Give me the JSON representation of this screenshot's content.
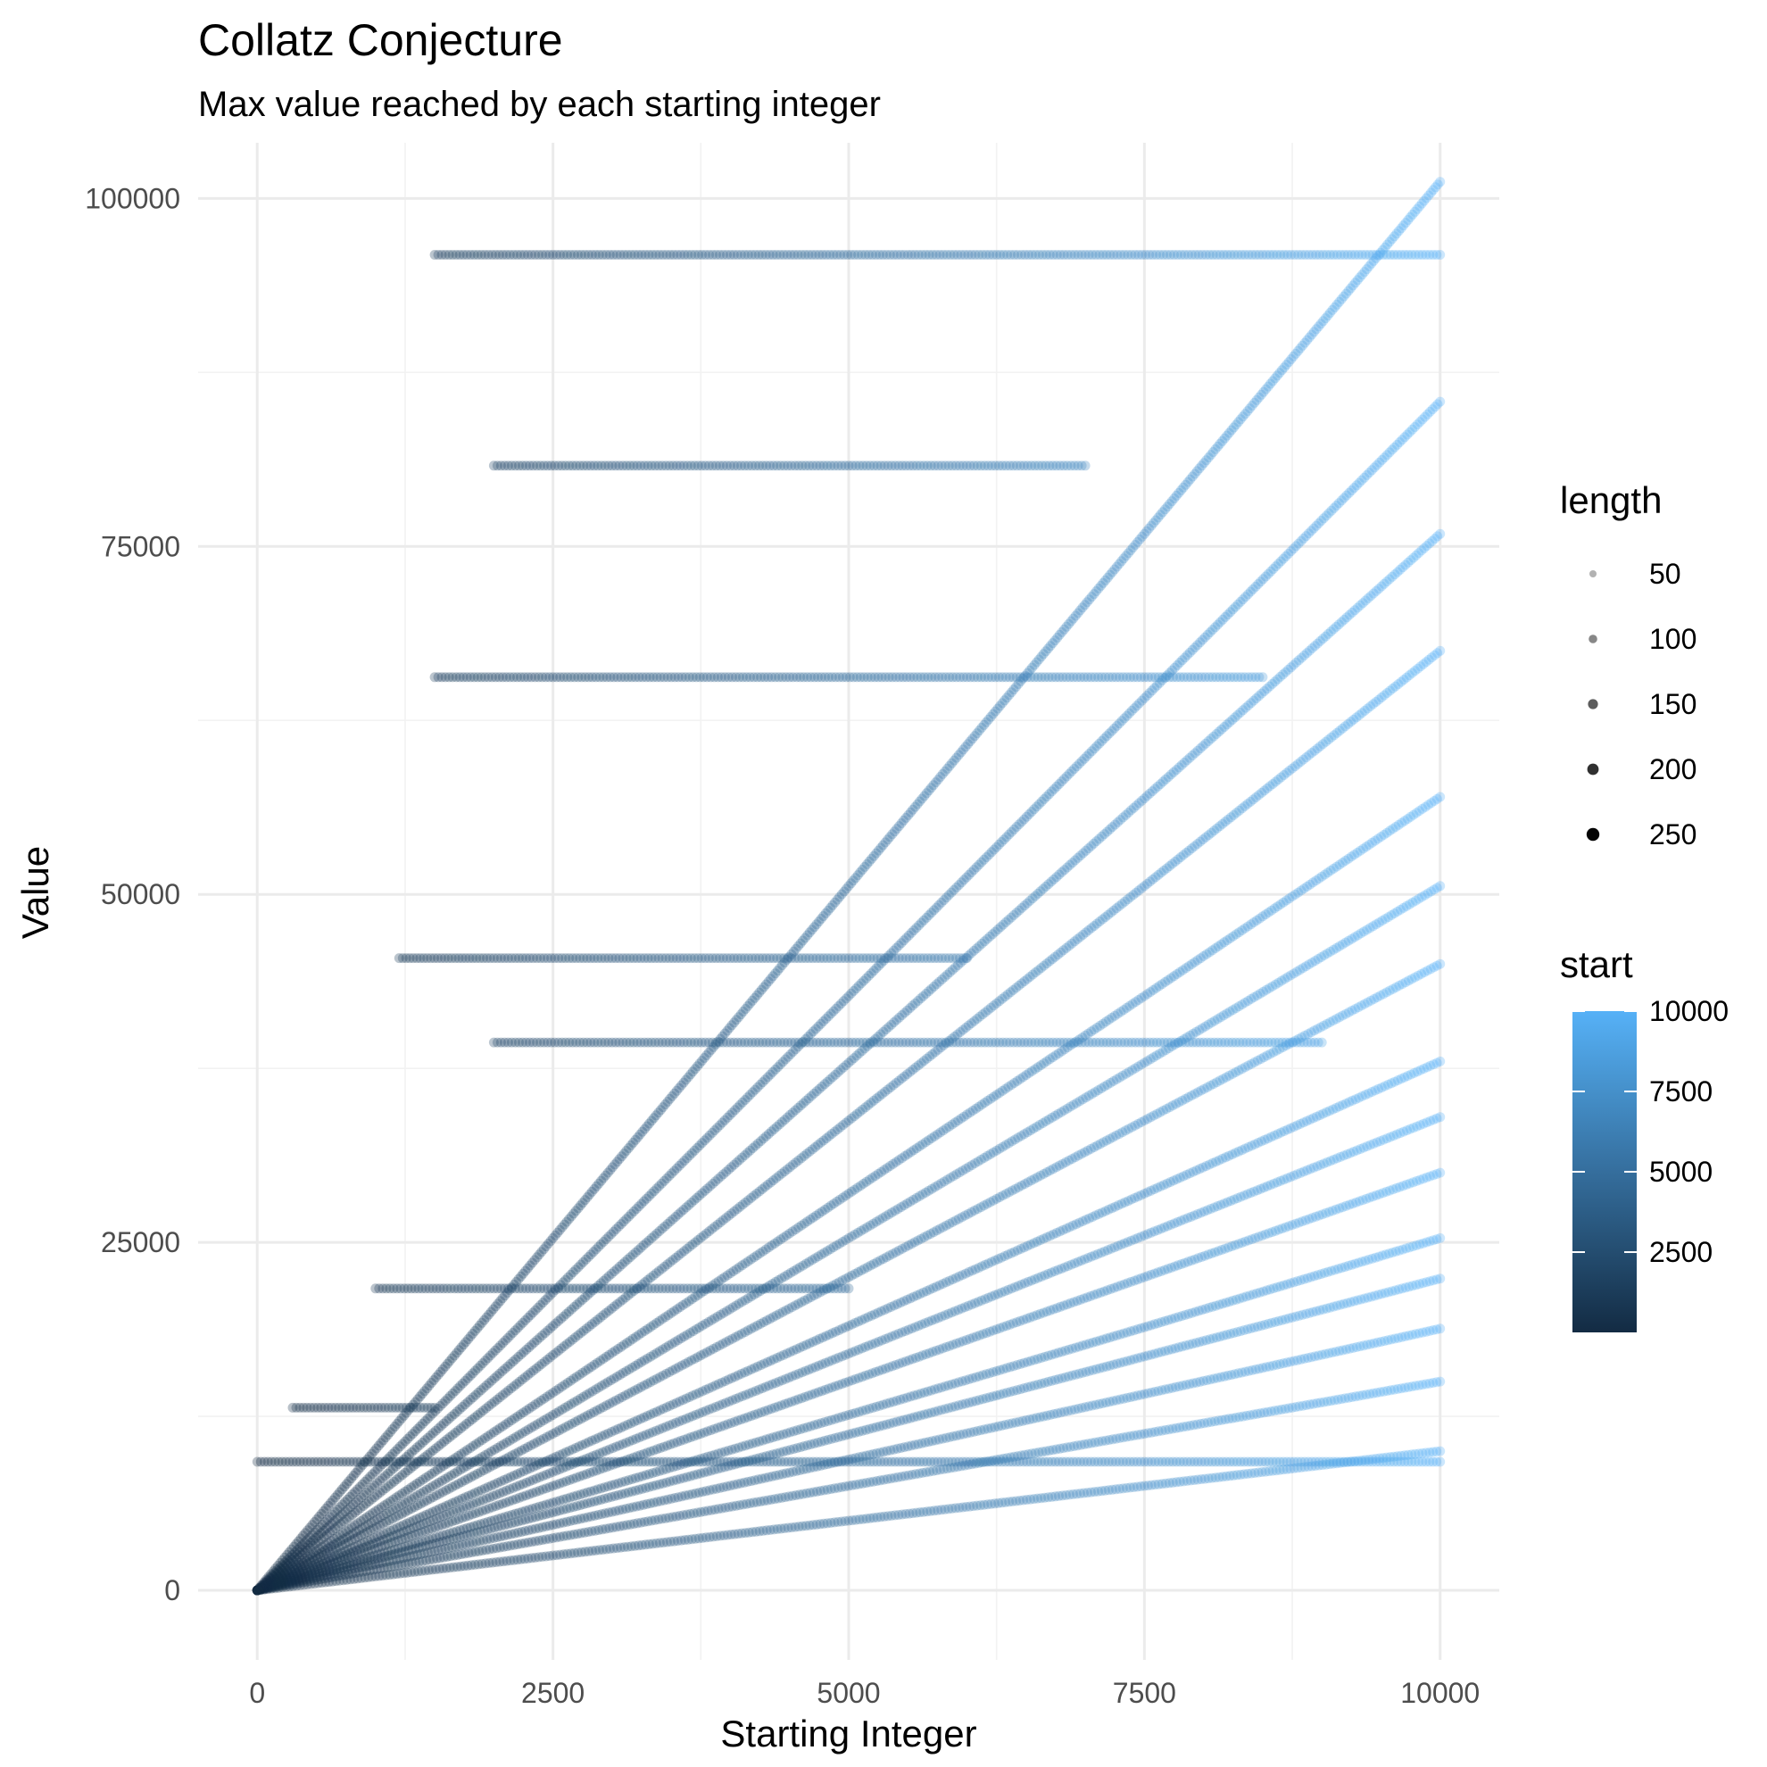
{
  "chart_data": {
    "type": "scatter",
    "title": "Collatz Conjecture",
    "subtitle": "Max value reached by each starting integer",
    "xlabel": "Starting Integer",
    "ylabel": "Value",
    "xlim": [
      -500,
      10500
    ],
    "ylim": [
      -5000,
      104000
    ],
    "x_ticks": [
      0,
      2500,
      5000,
      7500,
      10000
    ],
    "y_ticks": [
      0,
      25000,
      50000,
      75000,
      100000
    ],
    "x_tick_labels": [
      "0",
      "2500",
      "5000",
      "7500",
      "10000"
    ],
    "y_tick_labels": [
      "0",
      "25000",
      "50000",
      "75000",
      "100000"
    ],
    "grid": true,
    "legend_position": "right",
    "legends": {
      "size": {
        "title": "length",
        "breaks": [
          50,
          100,
          150,
          200,
          250
        ],
        "labels": [
          "50",
          "100",
          "150",
          "200",
          "250"
        ]
      },
      "color": {
        "title": "start",
        "range": [
          1,
          10000
        ],
        "breaks": [
          2500,
          5000,
          7500,
          10000
        ],
        "labels": [
          "2500",
          "5000",
          "7500",
          "10000"
        ],
        "low_color": "#132B43",
        "high_color": "#56B1F7"
      }
    },
    "color_mapping": "start",
    "point_alpha": 0.3,
    "series": [
      {
        "points": [
          [
            0,
            0
          ],
          [
            1000,
            1000
          ],
          [
            2500,
            2500
          ],
          [
            5000,
            5000
          ],
          [
            7500,
            7500
          ],
          [
            10000,
            10000
          ]
        ]
      },
      {
        "points": [
          [
            0,
            9232
          ],
          [
            2500,
            9232
          ],
          [
            5000,
            9232
          ],
          [
            7500,
            9232
          ],
          [
            10000,
            9232
          ]
        ]
      },
      {
        "points": [
          [
            0,
            0
          ],
          [
            2500,
            3750
          ],
          [
            5000,
            7500
          ],
          [
            7500,
            11250
          ],
          [
            10000,
            15000
          ]
        ]
      },
      {
        "points": [
          [
            0,
            0
          ],
          [
            2500,
            4700
          ],
          [
            5000,
            9400
          ],
          [
            7500,
            14100
          ],
          [
            10000,
            18800
          ]
        ]
      },
      {
        "points": [
          [
            0,
            0
          ],
          [
            2500,
            5600
          ],
          [
            5000,
            11200
          ],
          [
            7500,
            16800
          ],
          [
            10000,
            22400
          ]
        ]
      },
      {
        "points": [
          [
            0,
            0
          ],
          [
            2500,
            6300
          ],
          [
            5000,
            12600
          ],
          [
            7500,
            18900
          ],
          [
            10000,
            25300
          ]
        ]
      },
      {
        "points": [
          [
            0,
            0
          ],
          [
            2500,
            7500
          ],
          [
            5000,
            15000
          ],
          [
            7500,
            22500
          ],
          [
            10000,
            30000
          ]
        ]
      },
      {
        "points": [
          [
            0,
            0
          ],
          [
            2500,
            8500
          ],
          [
            5000,
            17000
          ],
          [
            7500,
            25500
          ],
          [
            10000,
            34000
          ]
        ]
      },
      {
        "points": [
          [
            0,
            0
          ],
          [
            2500,
            9500
          ],
          [
            5000,
            19000
          ],
          [
            7500,
            28500
          ],
          [
            10000,
            38000
          ]
        ]
      },
      {
        "points": [
          [
            0,
            0
          ],
          [
            2500,
            11250
          ],
          [
            5000,
            22500
          ],
          [
            7500,
            33750
          ],
          [
            10000,
            45000
          ]
        ]
      },
      {
        "points": [
          [
            0,
            0
          ],
          [
            2500,
            12600
          ],
          [
            5000,
            25300
          ],
          [
            7500,
            37900
          ],
          [
            10000,
            50600
          ]
        ]
      },
      {
        "points": [
          [
            0,
            0
          ],
          [
            2500,
            14200
          ],
          [
            5000,
            28500
          ],
          [
            7500,
            42700
          ],
          [
            10000,
            57000
          ]
        ]
      },
      {
        "points": [
          [
            0,
            0
          ],
          [
            2500,
            16900
          ],
          [
            5000,
            33750
          ],
          [
            7500,
            50600
          ],
          [
            10000,
            67500
          ]
        ]
      },
      {
        "points": [
          [
            0,
            0
          ],
          [
            2500,
            19000
          ],
          [
            5000,
            37900
          ],
          [
            7500,
            56900
          ],
          [
            10000,
            75900
          ]
        ]
      },
      {
        "points": [
          [
            0,
            0
          ],
          [
            2500,
            21400
          ],
          [
            5000,
            42700
          ],
          [
            7500,
            64100
          ],
          [
            10000,
            85400
          ]
        ]
      },
      {
        "points": [
          [
            0,
            0
          ],
          [
            2500,
            25300
          ],
          [
            5000,
            50600
          ],
          [
            7500,
            75900
          ],
          [
            10000,
            101200
          ]
        ]
      },
      {
        "points": [
          [
            2000,
            39364
          ],
          [
            3000,
            39364
          ],
          [
            4000,
            39364
          ],
          [
            5000,
            39364
          ],
          [
            6000,
            39364
          ],
          [
            7000,
            39364
          ],
          [
            8000,
            39364
          ],
          [
            9000,
            39364
          ]
        ]
      },
      {
        "points": [
          [
            1000,
            21688
          ],
          [
            2000,
            21688
          ],
          [
            3000,
            21688
          ],
          [
            4000,
            21688
          ],
          [
            5000,
            21688
          ]
        ]
      },
      {
        "points": [
          [
            1500,
            95956
          ],
          [
            2500,
            95956
          ],
          [
            4000,
            95956
          ],
          [
            5500,
            95956
          ],
          [
            7000,
            95956
          ],
          [
            8500,
            95956
          ],
          [
            10000,
            95956
          ]
        ]
      },
      {
        "points": [
          [
            1500,
            65608
          ],
          [
            2500,
            65608
          ],
          [
            3500,
            65608
          ],
          [
            4500,
            65608
          ],
          [
            6000,
            65608
          ],
          [
            7500,
            65608
          ],
          [
            8500,
            65608
          ]
        ]
      },
      {
        "points": [
          [
            1200,
            45424
          ],
          [
            2000,
            45424
          ],
          [
            3000,
            45424
          ],
          [
            4000,
            45424
          ],
          [
            5000,
            45424
          ],
          [
            6000,
            45424
          ]
        ]
      },
      {
        "points": [
          [
            300,
            13120
          ],
          [
            600,
            13120
          ],
          [
            900,
            13120
          ],
          [
            1200,
            13120
          ],
          [
            1500,
            13120
          ]
        ]
      },
      {
        "points": [
          [
            2000,
            80800
          ],
          [
            3000,
            80800
          ],
          [
            4000,
            80800
          ],
          [
            5000,
            80800
          ],
          [
            6300,
            80800
          ],
          [
            7000,
            80800
          ]
        ]
      }
    ]
  }
}
